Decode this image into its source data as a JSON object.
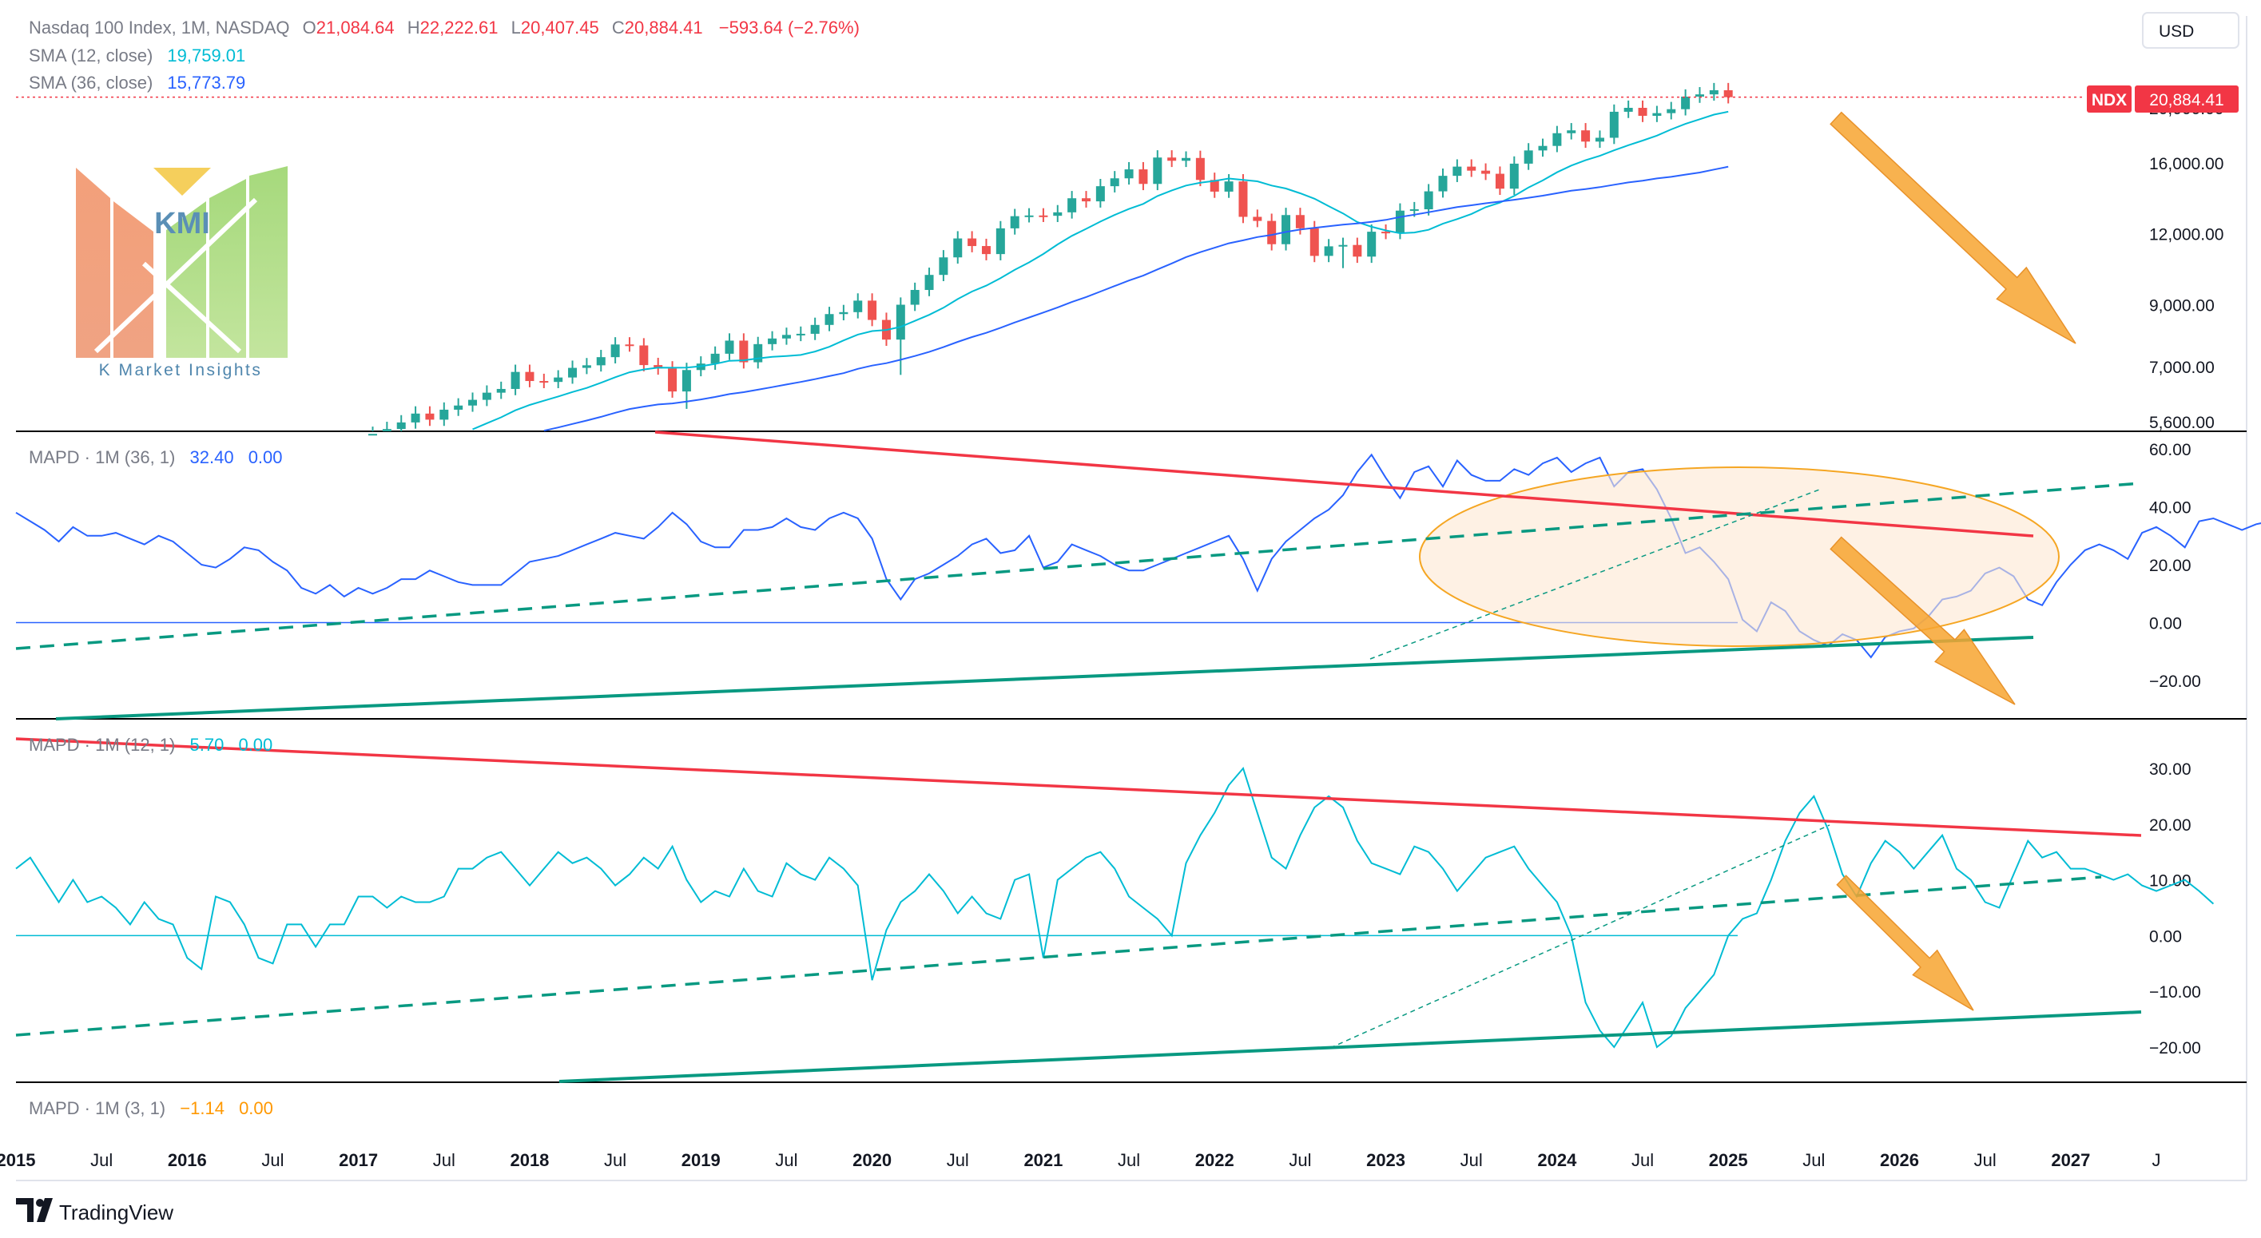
{
  "header": {
    "symbol_title": "Nasdaq 100 Index, 1M, NASDAQ",
    "ohlc": [
      {
        "label": "O",
        "value": "21,084.64"
      },
      {
        "label": "H",
        "value": "22,222.61"
      },
      {
        "label": "L",
        "value": "20,407.45"
      },
      {
        "label": "C",
        "value": "20,884.41"
      }
    ],
    "change": "−593.64 (−2.76%)",
    "sma12_label": "SMA (12, close)",
    "sma12_value": "19,759.01",
    "sma36_label": "SMA (36, close)",
    "sma36_value": "15,773.79"
  },
  "currency_button": "USD",
  "price_tag": {
    "symbol": "NDX",
    "value": "20,884.41"
  },
  "logo": {
    "abbr": "KMI",
    "name": "K Market Insights"
  },
  "footer": {
    "brand": "TradingView"
  },
  "colors": {
    "up": "#26a69a",
    "down": "#ef5350",
    "sma12": "#00bcd4",
    "sma36": "#2962ff",
    "mapd36": "#2962ff",
    "mapd12": "#00bcd4",
    "resistance": "#f23645",
    "support": "#089981",
    "arrow": "#f7a530",
    "ellipse_stroke": "#f5a623",
    "ellipse_fill": "#fde8d2"
  },
  "chart_data": [
    {
      "type": "candlestick",
      "title": "Nasdaq 100 Index, 1M, NASDAQ",
      "y_scale": "log",
      "y_ticks": [
        "20,000.00",
        "16,000.00",
        "12,000.00",
        "9,000.00",
        "7,000.00",
        "5,600.00"
      ],
      "y_tick_values": [
        20000,
        16000,
        12000,
        9000,
        7000,
        5600
      ],
      "ylim": [
        5400,
        23500
      ],
      "x_start": "2015-01",
      "x_end": "2027-12",
      "x_ticks": [
        "2015",
        "Jul",
        "2016",
        "Jul",
        "2017",
        "Jul",
        "2018",
        "Jul",
        "2019",
        "Jul",
        "2020",
        "Jul",
        "2021",
        "Jul",
        "2022",
        "Jul",
        "2023",
        "Jul",
        "2024",
        "Jul",
        "2025",
        "Jul",
        "2026",
        "Jul",
        "2027",
        "J"
      ],
      "x_tick_dates": [
        "2015-01",
        "2015-07",
        "2016-01",
        "2016-07",
        "2017-01",
        "2017-07",
        "2018-01",
        "2018-07",
        "2019-01",
        "2019-07",
        "2020-01",
        "2020-07",
        "2021-01",
        "2021-07",
        "2022-01",
        "2022-07",
        "2023-01",
        "2023-07",
        "2024-01",
        "2024-07",
        "2025-01",
        "2025-07",
        "2026-01",
        "2026-07",
        "2027-01",
        "2027-07"
      ],
      "candles": {
        "start": "2016-12",
        "close": [
          4863,
          5080,
          5330,
          5436,
          5584,
          5788,
          5647,
          5880,
          5980,
          6120,
          6300,
          6396,
          6853,
          6605,
          6581,
          6700,
          6967,
          7040,
          7276,
          7660,
          7630,
          7046,
          6950,
          6331,
          6906,
          7089,
          7378,
          7781,
          7127,
          7671,
          7848,
          7963,
          7999,
          8292,
          8665,
          8733,
          9151,
          8462,
          7813,
          9000,
          9556,
          10157,
          10905,
          11775,
          11418,
          11052,
          12268,
          12888,
          12925,
          12909,
          13091,
          13860,
          13687,
          14554,
          15027,
          15582,
          14690,
          16349,
          16136,
          16320,
          14930,
          14238,
          14839,
          12854,
          12643,
          11504,
          12947,
          12272,
          10971,
          11405,
          11468,
          10939,
          12101,
          12042,
          13182,
          13254,
          14254,
          15180,
          15757,
          15501,
          15307,
          14410,
          15948,
          16826,
          17137,
          18044,
          18254,
          17441,
          17713,
          19683,
          20000,
          19362,
          19574,
          19890,
          20930,
          21121,
          21478,
          20884
        ],
        "low_points": [
          {
            "date": "2018-12",
            "value": 5900
          },
          {
            "date": "2020-03",
            "value": 6771
          },
          {
            "date": "2022-10",
            "value": 10440
          }
        ],
        "high_points": [
          {
            "date": "2021-11",
            "value": 16764
          },
          {
            "date": "2025-02",
            "value": 22222.61
          }
        ]
      },
      "series": [
        {
          "name": "SMA (12, close)",
          "last_value": 19759.01
        },
        {
          "name": "SMA (36, close)",
          "last_value": 15773.79
        }
      ],
      "last_price": {
        "symbol": "NDX",
        "value": 20884.41
      }
    },
    {
      "type": "line",
      "series": [
        {
          "name": "MAPD · 1M (36, 1)",
          "params": [
            "32.40",
            "0.00"
          ]
        }
      ],
      "y_ticks": [
        "60.00",
        "40.00",
        "20.00",
        "0.00",
        "−20.00"
      ],
      "y_tick_values": [
        60,
        40,
        20,
        0,
        -20
      ],
      "ylim": [
        -33,
        62
      ],
      "start": "2015-01",
      "values": [
        38,
        35,
        32,
        28,
        33,
        30,
        30,
        31,
        29,
        27,
        30,
        28,
        24,
        20,
        19,
        22,
        26,
        25,
        21,
        18,
        12,
        10,
        13,
        9,
        12,
        10,
        12,
        15,
        15,
        18,
        16,
        14,
        13,
        13,
        13,
        17,
        21,
        22,
        23,
        25,
        27,
        29,
        31,
        30,
        29,
        33,
        38,
        34,
        28,
        26,
        26,
        32,
        32,
        33,
        36,
        33,
        32,
        36,
        38,
        36,
        29,
        15,
        8,
        15,
        17,
        20,
        23,
        27,
        29,
        24,
        25,
        30,
        19,
        21,
        27,
        25,
        23,
        20,
        18,
        18,
        20,
        22,
        24,
        26,
        28,
        30,
        22,
        11,
        22,
        28,
        32,
        36,
        39,
        44,
        52,
        58,
        50,
        43,
        52,
        54,
        47,
        56,
        51,
        49,
        49,
        53,
        51,
        55,
        57,
        52,
        55,
        57,
        47,
        52,
        53,
        46,
        36,
        24,
        26,
        21,
        15,
        1,
        -3,
        7,
        4,
        -3,
        -6,
        -8,
        -4,
        -6,
        -12,
        -5,
        -3,
        -2,
        2,
        8,
        9,
        11,
        17,
        19,
        16,
        8,
        6,
        14,
        20,
        25,
        27,
        25,
        22,
        31,
        33,
        30,
        26,
        35,
        36,
        34,
        32,
        34,
        35,
        37,
        34,
        36,
        35,
        34,
        36,
        38,
        32.4
      ]
    },
    {
      "type": "line",
      "series": [
        {
          "name": "MAPD · 1M (12, 1)",
          "params": [
            "5.70",
            "0.00"
          ]
        }
      ],
      "y_ticks": [
        "30.00",
        "20.00",
        "10.00",
        "0.00",
        "−10.00",
        "−20.00"
      ],
      "y_tick_values": [
        30,
        20,
        10,
        0,
        -10,
        -20
      ],
      "ylim": [
        -26,
        34
      ],
      "start": "2015-01",
      "values": [
        12,
        14,
        10,
        6,
        10,
        6,
        7,
        5,
        2,
        6,
        3,
        2,
        -4,
        -6,
        7,
        6,
        2,
        -4,
        -5,
        2,
        2,
        -2,
        2,
        2,
        7,
        7,
        5,
        7,
        6,
        6,
        7,
        12,
        12,
        14,
        15,
        12,
        9,
        12,
        15,
        13,
        14,
        12,
        9,
        11,
        14,
        12,
        16,
        10,
        6,
        8,
        7,
        12,
        8,
        7,
        13,
        11,
        10,
        14,
        12,
        9,
        -8,
        1,
        6,
        8,
        11,
        8,
        4,
        7,
        4,
        3,
        10,
        11,
        -4,
        10,
        12,
        14,
        15,
        12,
        7,
        5,
        3,
        0,
        13,
        18,
        22,
        27,
        30,
        22,
        14,
        12,
        18,
        23,
        25,
        23,
        17,
        13,
        12,
        11,
        16,
        15,
        12,
        8,
        11,
        14,
        15,
        16,
        12,
        9,
        6,
        0,
        -12,
        -17,
        -20,
        -16,
        -12,
        -20,
        -18,
        -13,
        -10,
        -7,
        0,
        3,
        4,
        10,
        17,
        22,
        25,
        19,
        11,
        7,
        13,
        17,
        15,
        12,
        15,
        18,
        12,
        10,
        6,
        5,
        11,
        17,
        14,
        15,
        12,
        12,
        11,
        10,
        11,
        9,
        8,
        9,
        10,
        8,
        5.7
      ]
    },
    {
      "type": "line",
      "series": [
        {
          "name": "MAPD · 1M (3, 1)",
          "params": [
            "−1.14",
            "0.00"
          ]
        }
      ]
    }
  ]
}
